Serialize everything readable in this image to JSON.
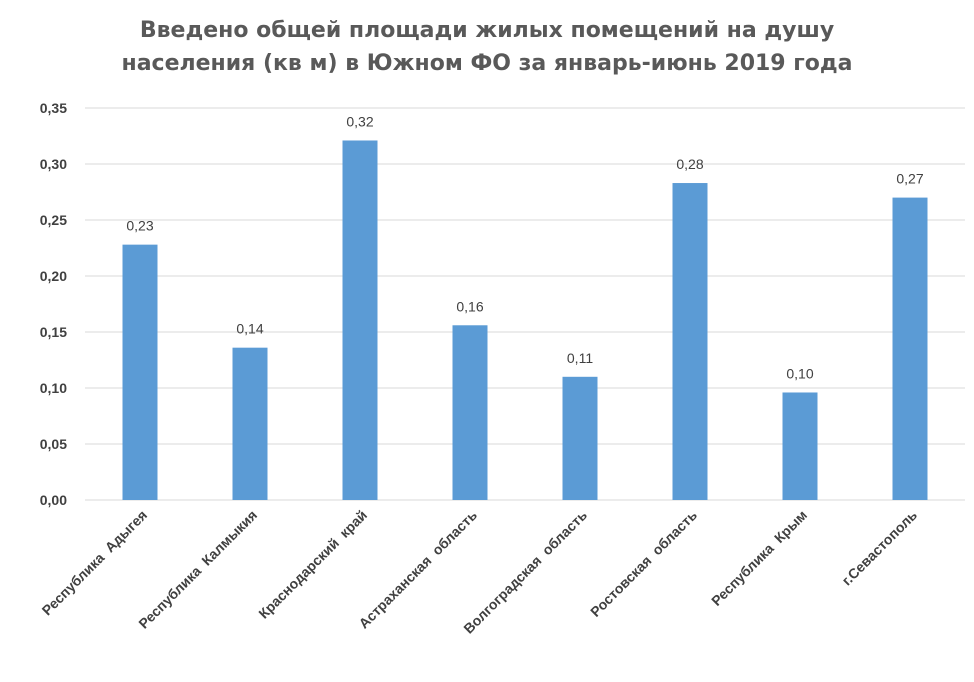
{
  "chart_data": {
    "type": "bar",
    "title_lines": [
      "Введено общей площади жилых помещений на душу",
      "населения (кв м) в Южном ФО за январь-июнь 2019 года"
    ],
    "categories": [
      "Республика  Адыгея",
      "Республика  Калмыкия",
      "Краснодарский  край",
      "Астраханская  область",
      "Волгоградская  область",
      "Ростовская  область",
      "Республика  Крым",
      "г.Севастополь"
    ],
    "values": [
      0.228,
      0.136,
      0.321,
      0.156,
      0.11,
      0.283,
      0.096,
      0.27
    ],
    "data_labels": [
      "0,23",
      "0,14",
      "0,32",
      "0,16",
      "0,11",
      "0,28",
      "0,10",
      "0,27"
    ],
    "y_ticks": [
      0,
      0.05,
      0.1,
      0.15,
      0.2,
      0.25,
      0.3,
      0.35
    ],
    "y_tick_labels": [
      "0,00",
      "0,05",
      "0,10",
      "0,15",
      "0,20",
      "0,25",
      "0,30",
      "0,35"
    ],
    "ylim": [
      0,
      0.35
    ],
    "xlabel": "",
    "ylabel": "",
    "grid": true,
    "legend": "none",
    "bar_color": "#5b9bd5",
    "grid_color": "#d9d9d9"
  }
}
